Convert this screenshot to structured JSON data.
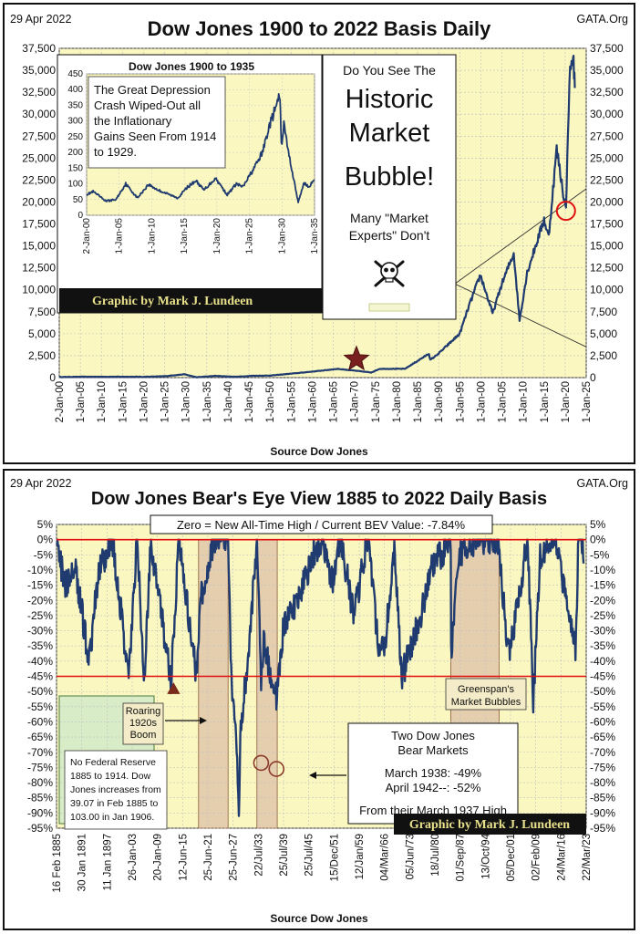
{
  "chart_data": [
    {
      "type": "line",
      "date": "29 Apr 2022",
      "source_tag": "GATA.Org",
      "title": "Dow Jones 1900 to 2022 Basis Daily",
      "xlabel": "Source Dow Jones",
      "ylim": [
        0,
        37500
      ],
      "y_ticks": [
        "0",
        "2,500",
        "5,000",
        "7,500",
        "10,000",
        "12,500",
        "15,000",
        "17,500",
        "20,000",
        "22,500",
        "25,000",
        "27,500",
        "30,000",
        "32,500",
        "35,000",
        "37,500"
      ],
      "x_ticks": [
        "2-Jan-00",
        "1-Jan-05",
        "1-Jan-10",
        "1-Jan-15",
        "1-Jan-20",
        "1-Jan-25",
        "1-Jan-30",
        "1-Jan-35",
        "1-Jan-40",
        "1-Jan-45",
        "1-Jan-50",
        "1-Jan-55",
        "1-Jan-60",
        "1-Jan-65",
        "1-Jan-70",
        "1-Jan-75",
        "1-Jan-80",
        "1-Jan-85",
        "1-Jan-90",
        "1-Jan-95",
        "1-Jan-00",
        "1-Jan-05",
        "1-Jan-10",
        "1-Jan-15",
        "1-Jan-20",
        "1-Jan-25"
      ],
      "x": [
        1900,
        1905,
        1910,
        1915,
        1920,
        1925,
        1929.7,
        1932.5,
        1937,
        1942,
        1946,
        1950,
        1955,
        1960,
        1966,
        1970,
        1974,
        1976,
        1982,
        1987.7,
        1988,
        1990,
        1995,
        1997,
        1999.9,
        2002.8,
        2005,
        2007.8,
        2009.2,
        2011,
        2015,
        2016.1,
        2018,
        2020.2,
        2021,
        2021.9,
        2022.3
      ],
      "y": [
        66,
        96,
        98,
        99,
        90,
        155,
        381,
        41,
        194,
        93,
        210,
        230,
        450,
        680,
        995,
        800,
        580,
        1000,
        1000,
        2722,
        2000,
        2750,
        5000,
        7900,
        11700,
        7300,
        10700,
        14160,
        6547,
        12000,
        18000,
        16000,
        26000,
        19000,
        34000,
        36800,
        32977
      ],
      "annotations": {
        "center_lines": [
          "Do You See The",
          "Historic",
          "Market",
          "Bubble!",
          "Many \"Market",
          "Experts\"  Don't"
        ],
        "credit": "Graphic by Mark J. Lundeen"
      },
      "inset": {
        "title": "Dow Jones 1900 to 1935",
        "ylim": [
          0,
          450
        ],
        "y_ticks": [
          "0",
          "50",
          "100",
          "150",
          "200",
          "250",
          "300",
          "350",
          "400",
          "450"
        ],
        "x_ticks": [
          "2-Jan-00",
          "1-Jan-05",
          "1-Jan-10",
          "1-Jan-15",
          "1-Jan-20",
          "1-Jan-25",
          "1-Jan-30",
          "1-Jan-35"
        ],
        "x": [
          1900,
          1901,
          1903,
          1904.5,
          1906,
          1907.8,
          1909.5,
          1911,
          1914,
          1915.5,
          1916.8,
          1918,
          1919.8,
          1921.6,
          1923,
          1924,
          1926,
          1927,
          1928,
          1929.7,
          1929.9,
          1930.3,
          1931,
          1932.5,
          1933.4,
          1934,
          1935
        ],
        "y": [
          66,
          75,
          45,
          50,
          100,
          55,
          98,
          80,
          55,
          90,
          110,
          80,
          118,
          65,
          100,
          90,
          160,
          200,
          280,
          381,
          220,
          290,
          200,
          41,
          105,
          90,
          110
        ],
        "note": "The Great Depression Crash Wiped-Out all the Inflationary Gains Seen From 1914 to 1929."
      }
    },
    {
      "type": "area",
      "date": "29 Apr 2022",
      "source_tag": "GATA.Org",
      "title": "Dow Jones Bear's Eye View 1885 to 2022 Daily Basis",
      "xlabel": "Source Dow Jones",
      "ylim": [
        -95,
        5
      ],
      "y_ticks": [
        "5%",
        "0%",
        "-5%",
        "-10%",
        "-15%",
        "-20%",
        "-25%",
        "-30%",
        "-35%",
        "-40%",
        "-45%",
        "-50%",
        "-55%",
        "-60%",
        "-65%",
        "-70%",
        "-75%",
        "-80%",
        "-85%",
        "-90%",
        "-95%"
      ],
      "x_ticks": [
        "16 Feb 1885",
        "30 Jan 1891",
        "11 Jan 1897",
        "26-Jan-03",
        "20-Jan-09",
        "12-Jun-15",
        "25-Jun-21",
        "25-Jun-27",
        "22/Jul/33",
        "25/Jul/39",
        "25/Jul/45",
        "15/Dec/51",
        "12/Jan/59",
        "04/Mar/66",
        "05/Jun/73",
        "18/Jul/80",
        "01/Sep/87",
        "13/Oct/94",
        "05/Dec/01",
        "02/Feb/09",
        "24/Mar/16",
        "22/Mar/23"
      ],
      "x": [
        1885.1,
        1887,
        1890,
        1893.5,
        1896,
        1899.5,
        1903.8,
        1906,
        1907.9,
        1909.5,
        1914.9,
        1916.8,
        1921.6,
        1922.5,
        1926,
        1929.7,
        1930.5,
        1931.5,
        1932.5,
        1933,
        1935,
        1937.2,
        1938.3,
        1939,
        1942.3,
        1944,
        1946,
        1948,
        1952,
        1954.5,
        1957,
        1959,
        1962.5,
        1966,
        1968.9,
        1970.4,
        1973,
        1974.9,
        1980,
        1982.6,
        1987.7,
        1987.8,
        1990,
        1995,
        2000,
        2002.8,
        2007.8,
        2009.2,
        2011,
        2015,
        2020.2,
        2021,
        2021.9,
        2022.3
      ],
      "y": [
        0,
        -15,
        -10,
        -40,
        -10,
        0,
        -45,
        0,
        -48,
        0,
        -47,
        0,
        -46,
        -20,
        0,
        0,
        -45,
        -60,
        -89,
        -60,
        -40,
        0,
        -49,
        -35,
        -52,
        -30,
        -25,
        -20,
        -5,
        0,
        -15,
        0,
        -25,
        0,
        -35,
        -36,
        -5,
        -45,
        -25,
        -10,
        0,
        -36,
        -5,
        0,
        0,
        -38,
        0,
        -54,
        -5,
        0,
        -37,
        0,
        0,
        -7.84
      ],
      "red_line_levels": [
        0,
        -45
      ],
      "shaded_periods": [
        [
          1922,
          1929.7
        ],
        [
          1937.2,
          1942.5
        ],
        [
          1987.7,
          2000.3
        ]
      ],
      "annotations": {
        "header_box": "Zero = New All-Time High / Current BEV Value: -7.84%",
        "greenspan": [
          "Greenspan's",
          "Market Bubbles"
        ],
        "roaring": [
          "Roaring",
          "1920s",
          "Boom"
        ],
        "fed_note": [
          "No Federal Reserve",
          "1885 to 1914.  Dow",
          "Jones increases from",
          "39.07 in Feb 1885 to",
          "103.00 in Jan 1906."
        ],
        "bear_box": [
          "Two Dow Jones",
          "Bear Markets",
          "March 1938: -49%",
          "April 1942--: -52%",
          "From their March 1937 High"
        ],
        "credit": "Graphic by Mark J. Lundeen"
      }
    }
  ]
}
